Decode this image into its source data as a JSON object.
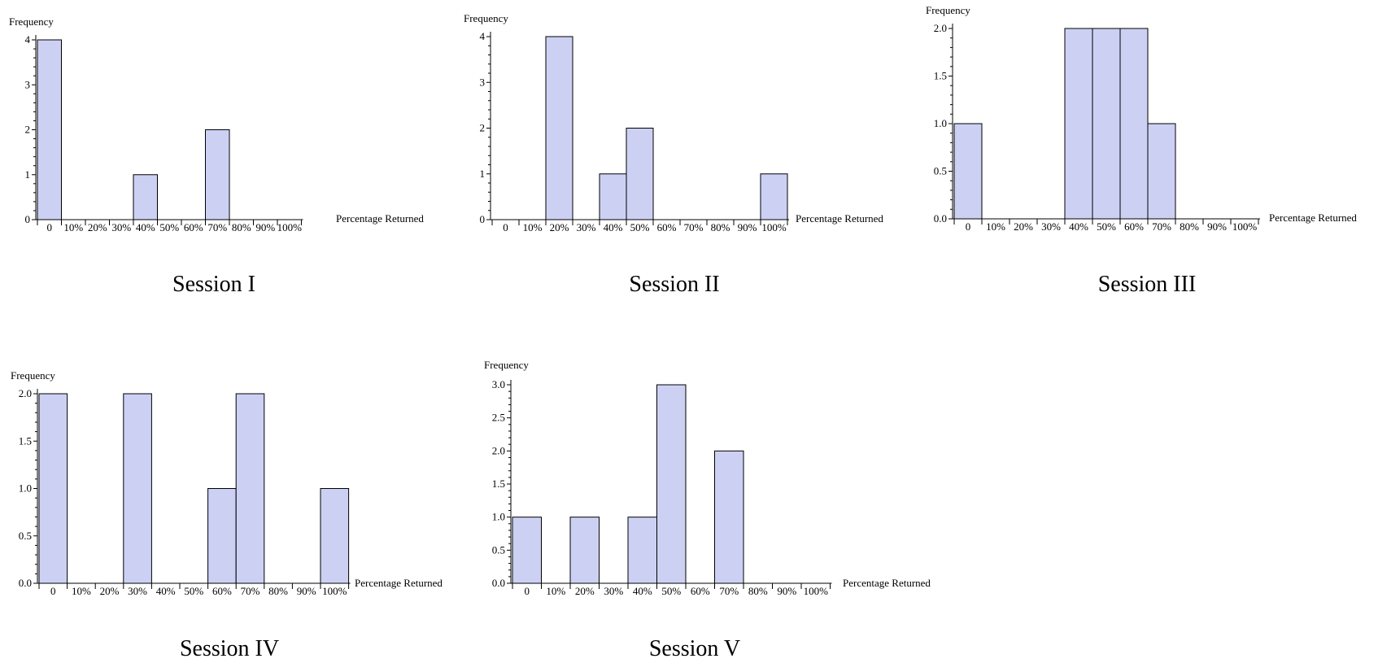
{
  "chart_data": [
    {
      "type": "bar",
      "caption": "Session I",
      "ylabel": "Frequency",
      "xlabel": "Percentage Returned",
      "categories": [
        "0",
        "10%",
        "20%",
        "30%",
        "40%",
        "50%",
        "60%",
        "70%",
        "80%",
        "90%",
        "100%"
      ],
      "values": [
        4,
        0,
        0,
        0,
        1,
        0,
        0,
        2,
        0,
        0,
        0
      ],
      "ylim": [
        0,
        4
      ],
      "yticks": [
        "0",
        "1",
        "2",
        "3",
        "4"
      ],
      "bar_color": "#ccd1f4"
    },
    {
      "type": "bar",
      "caption": "Session II",
      "ylabel": "Frequency",
      "xlabel": "Percentage Returned",
      "categories": [
        "0",
        "10%",
        "20%",
        "30%",
        "40%",
        "50%",
        "60%",
        "70%",
        "80%",
        "90%",
        "100%"
      ],
      "values": [
        0,
        0,
        4,
        0,
        1,
        2,
        0,
        0,
        0,
        0,
        1
      ],
      "ylim": [
        0,
        4
      ],
      "yticks": [
        "0",
        "1",
        "2",
        "3",
        "4"
      ],
      "bar_color": "#ccd1f4"
    },
    {
      "type": "bar",
      "caption": "Session III",
      "ylabel": "Frequency",
      "xlabel": "Percentage Returned",
      "categories": [
        "0",
        "10%",
        "20%",
        "30%",
        "40%",
        "50%",
        "60%",
        "70%",
        "80%",
        "90%",
        "100%"
      ],
      "values": [
        1,
        0,
        0,
        0,
        2,
        2,
        2,
        1,
        0,
        0,
        0
      ],
      "ylim": [
        0,
        2
      ],
      "yticks": [
        "0.0",
        "0.5",
        "1.0",
        "1.5",
        "2.0"
      ],
      "bar_color": "#ccd1f4"
    },
    {
      "type": "bar",
      "caption": "Session IV",
      "ylabel": "Frequency",
      "xlabel": "Percentage Returned",
      "categories": [
        "0",
        "10%",
        "20%",
        "30%",
        "40%",
        "50%",
        "60%",
        "70%",
        "80%",
        "90%",
        "100%"
      ],
      "values": [
        2,
        0,
        0,
        2,
        0,
        0,
        1,
        2,
        0,
        0,
        1
      ],
      "ylim": [
        0,
        2
      ],
      "yticks": [
        "0.0",
        "0.5",
        "1.0",
        "1.5",
        "2.0"
      ],
      "bar_color": "#ccd1f4"
    },
    {
      "type": "bar",
      "caption": "Session V",
      "ylabel": "Frequency",
      "xlabel": "Percentage Returned",
      "categories": [
        "0",
        "10%",
        "20%",
        "30%",
        "40%",
        "50%",
        "60%",
        "70%",
        "80%",
        "90%",
        "100%"
      ],
      "values": [
        1,
        0,
        1,
        0,
        1,
        3,
        0,
        2,
        0,
        0,
        0
      ],
      "ylim": [
        0,
        3
      ],
      "yticks": [
        "0.0",
        "0.5",
        "1.0",
        "1.5",
        "2.0",
        "2.5",
        "3.0"
      ],
      "bar_color": "#ccd1f4"
    }
  ]
}
